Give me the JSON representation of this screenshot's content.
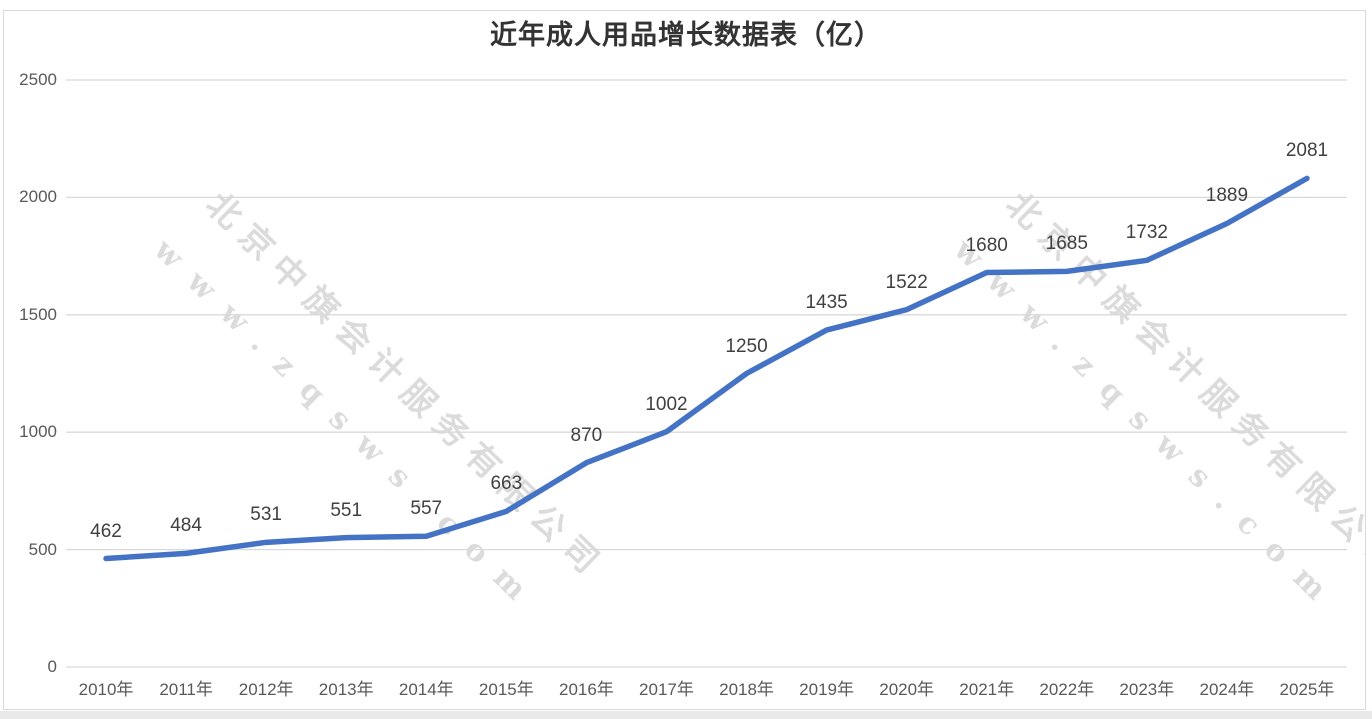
{
  "chart_data": {
    "type": "line",
    "title": "近年成人用品增长数据表（亿）",
    "categories": [
      "2010年",
      "2011年",
      "2012年",
      "2013年",
      "2014年",
      "2015年",
      "2016年",
      "2017年",
      "2018年",
      "2019年",
      "2020年",
      "2021年",
      "2022年",
      "2023年",
      "2024年",
      "2025年"
    ],
    "values": [
      462,
      484,
      531,
      551,
      557,
      663,
      870,
      1002,
      1250,
      1435,
      1522,
      1680,
      1685,
      1732,
      1889,
      2081
    ],
    "xlabel": "",
    "ylabel": "",
    "ylim": [
      0,
      2500
    ],
    "yticks": [
      0,
      500,
      1000,
      1500,
      2000,
      2500
    ],
    "grid": true,
    "legend": "none",
    "data_labels": "above",
    "line_color": "#4472C4",
    "gridline_color": "#d9d9d9",
    "axis_label_color": "#595959",
    "data_label_color": "#404040",
    "title_color": "#333333"
  },
  "watermark": {
    "company": "北京中旗会计服务有限公司",
    "url": "www.zqsws.com"
  }
}
